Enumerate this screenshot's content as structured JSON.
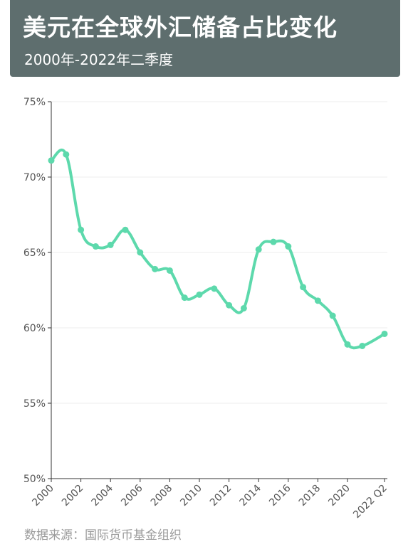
{
  "header": {
    "title": "美元在全球外汇储备占比变化",
    "subtitle": "2000年-2022年二季度"
  },
  "source": "数据来源：国际货币基金组织",
  "colors": {
    "header_bg": "#5e6e6e",
    "line": "#5dd9ac",
    "grid": "#eeeeee",
    "axis": "#333333"
  },
  "chart_data": {
    "type": "line",
    "title": "",
    "xlabel": "",
    "ylabel": "",
    "ylim": [
      50,
      75
    ],
    "yticks": [
      50,
      55,
      60,
      65,
      70,
      75
    ],
    "ytick_labels": [
      "50%",
      "55%",
      "60%",
      "65%",
      "70%",
      "75%"
    ],
    "xlim": [
      2000,
      2022.5
    ],
    "xticks": [
      2000,
      2002,
      2004,
      2006,
      2008,
      2010,
      2012,
      2014,
      2016,
      2018,
      2020,
      2022.5
    ],
    "xtick_labels": [
      "2000",
      "2002",
      "2004",
      "2006",
      "2008",
      "2010",
      "2012",
      "2014",
      "2016",
      "2018",
      "2020",
      "2022 Q2"
    ],
    "grid": true,
    "series": [
      {
        "x": [
          2000,
          2001,
          2002,
          2003,
          2004,
          2005,
          2006,
          2007,
          2008,
          2009,
          2010,
          2011,
          2012,
          2013,
          2014,
          2015,
          2016,
          2017,
          2018,
          2019,
          2020,
          2021,
          2022.5
        ],
        "values": [
          71.1,
          71.5,
          66.5,
          65.4,
          65.5,
          66.5,
          65.0,
          63.9,
          63.8,
          62.0,
          62.2,
          62.6,
          61.5,
          61.3,
          65.2,
          65.7,
          65.4,
          62.7,
          61.8,
          60.8,
          58.9,
          58.8,
          59.6
        ]
      }
    ]
  }
}
